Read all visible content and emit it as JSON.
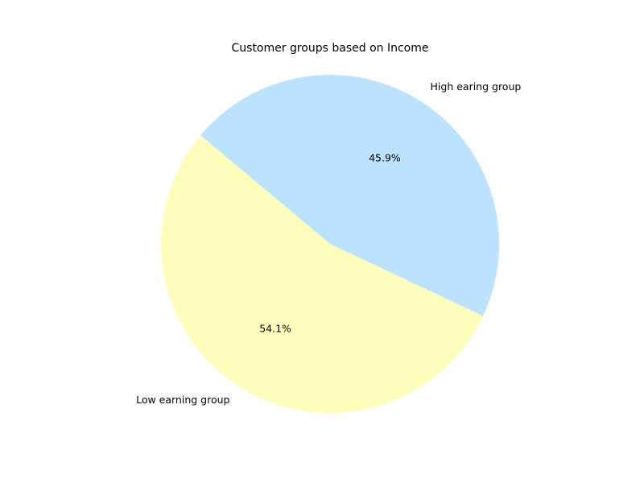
{
  "chart_data": {
    "type": "pie",
    "title": "Customer groups based on Income",
    "start_angle_deg": 140,
    "direction": "counterclockwise",
    "slices": [
      {
        "label": "Low earning group",
        "value": 54.1,
        "pct_label": "54.1%",
        "color": "#ffffbb"
      },
      {
        "label": "High earing group",
        "value": 45.9,
        "pct_label": "45.9%",
        "color": "#bbe2ff"
      }
    ]
  }
}
